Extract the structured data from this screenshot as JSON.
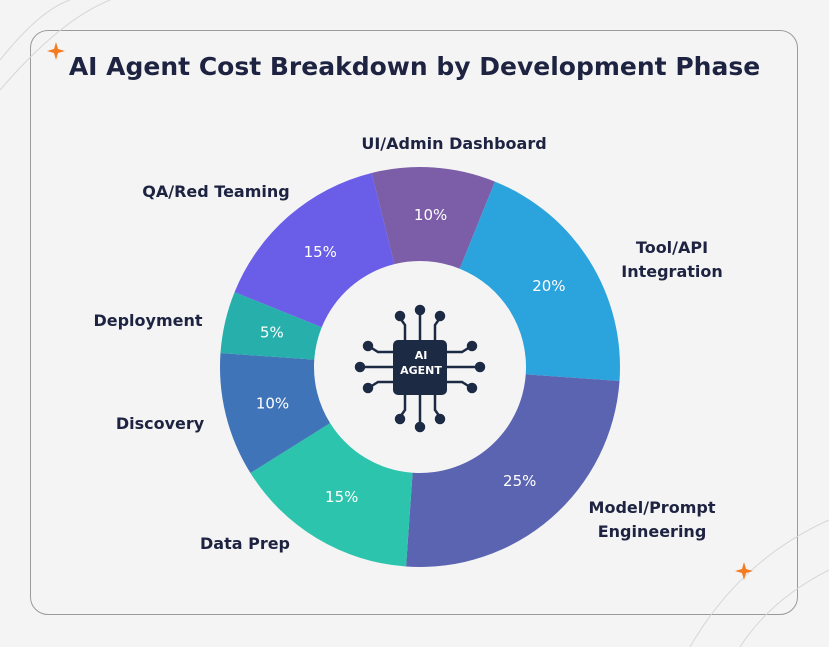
{
  "chart_data": {
    "type": "pie",
    "title": "AI Agent Cost Breakdown by Development Phase",
    "categories": [
      "UI/Admin Dashboard",
      "Tool/API Integration",
      "Model/Prompt Engineering",
      "Data Prep",
      "Discovery",
      "Deployment",
      "QA/Red Teaming"
    ],
    "values": [
      10,
      20,
      25,
      15,
      10,
      5,
      15
    ],
    "value_labels": [
      "10%",
      "20%",
      "25%",
      "15%",
      "10%",
      "5%",
      "15%"
    ],
    "colors": [
      "#7b5ea7",
      "#2ba3dc",
      "#5a64b0",
      "#2cc4ad",
      "#3f74b8",
      "#27b0ab",
      "#6a5de8"
    ],
    "center_label": "AI AGENT"
  }
}
